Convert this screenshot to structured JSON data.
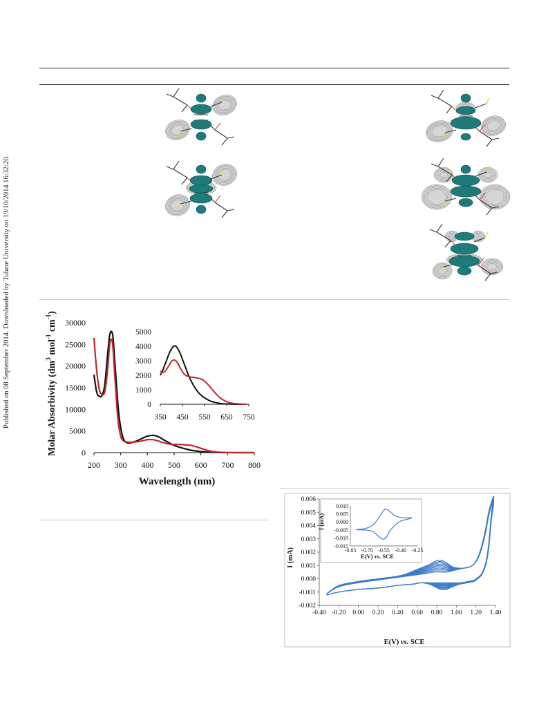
{
  "side_note": "Published on 08 September 2014. Downloaded by Tulane University on 19/10/2014 16:32:20.",
  "mo_panel": {
    "images": [
      {
        "name": "mo-image-left-top"
      },
      {
        "name": "mo-image-left-bottom"
      },
      {
        "name": "mo-image-right-top"
      },
      {
        "name": "mo-image-right-middle"
      },
      {
        "name": "mo-image-right-bottom"
      }
    ]
  },
  "colors": {
    "black_series": "#111111",
    "red_series": "#c0262c",
    "cv_series": "#3d7cc9",
    "lobe": "#1f7a7a",
    "shell": "#d6d6d6"
  },
  "chart_data": [
    {
      "type": "line",
      "id": "uv-vis-main",
      "xlabel": "Wavelength (nm)",
      "ylabel": "Molar Absorbivity (dm3 mol-1 cm-1)",
      "ylabel_parts": {
        "a": "Molar Absorbivity (dm",
        "b": "3",
        "c": " mol",
        "d": "-1",
        "e": " cm",
        "f": "-1",
        "g": ")"
      },
      "xlim": [
        200,
        800
      ],
      "ylim": [
        0,
        30000
      ],
      "x_ticks": [
        "200",
        "300",
        "400",
        "500",
        "600",
        "700",
        "800"
      ],
      "y_ticks": [
        "0",
        "5000",
        "10000",
        "15000",
        "20000",
        "25000",
        "30000"
      ],
      "series": [
        {
          "color": "#111111",
          "x": [
            200,
            210,
            220,
            230,
            240,
            250,
            258,
            264,
            270,
            274,
            278,
            285,
            292,
            300,
            310,
            320,
            330,
            340,
            360,
            380,
            400,
            420,
            440,
            460,
            480,
            500,
            520,
            540,
            560,
            580,
            600,
            620,
            640,
            660,
            680,
            700,
            720,
            760,
            800
          ],
          "y": [
            18000,
            14000,
            13000,
            13200,
            15500,
            22000,
            26800,
            28000,
            27200,
            24500,
            21000,
            15000,
            9500,
            5800,
            3200,
            2400,
            2200,
            2300,
            2700,
            3300,
            3800,
            4000,
            3700,
            3000,
            2300,
            1700,
            1250,
            900,
            600,
            400,
            250,
            150,
            80,
            40,
            20,
            10,
            0,
            0,
            0
          ]
        },
        {
          "color": "#c0262c",
          "x": [
            200,
            210,
            220,
            230,
            240,
            250,
            258,
            264,
            270,
            275,
            282,
            290,
            300,
            310,
            320,
            330,
            340,
            360,
            380,
            400,
            420,
            440,
            460,
            480,
            500,
            520,
            540,
            560,
            580,
            600,
            620,
            640,
            660,
            680,
            700,
            720,
            760,
            800
          ],
          "y": [
            26500,
            19000,
            14500,
            13500,
            14000,
            18500,
            24500,
            26200,
            25000,
            20500,
            14000,
            7500,
            3800,
            2700,
            2500,
            2400,
            2400,
            2500,
            2700,
            3000,
            3000,
            2700,
            2300,
            2000,
            1900,
            1900,
            1800,
            1700,
            1400,
            1000,
            600,
            300,
            150,
            70,
            30,
            10,
            0,
            0
          ]
        }
      ]
    },
    {
      "type": "line",
      "id": "uv-vis-inset",
      "xlim": [
        350,
        750
      ],
      "ylim": [
        0,
        5000
      ],
      "x_ticks": [
        "350",
        "450",
        "550",
        "650",
        "750"
      ],
      "y_ticks": [
        "0",
        "1000",
        "2000",
        "3000",
        "4000",
        "5000"
      ],
      "series": [
        {
          "color": "#111111",
          "x": [
            350,
            360,
            370,
            380,
            390,
            400,
            410,
            420,
            430,
            440,
            450,
            460,
            470,
            480,
            500,
            520,
            540,
            560,
            580,
            600,
            620,
            640,
            660,
            680,
            700,
            720,
            740
          ],
          "y": [
            2000,
            2300,
            2700,
            3100,
            3500,
            3800,
            4000,
            4000,
            3800,
            3500,
            3100,
            2700,
            2300,
            1900,
            1300,
            850,
            550,
            350,
            200,
            120,
            60,
            30,
            15,
            5,
            0,
            0,
            0
          ]
        },
        {
          "color": "#c0262c",
          "x": [
            350,
            360,
            370,
            380,
            390,
            400,
            410,
            420,
            430,
            440,
            450,
            460,
            470,
            480,
            500,
            520,
            540,
            560,
            580,
            600,
            620,
            640,
            660,
            680,
            700,
            720,
            740
          ],
          "y": [
            2300,
            2200,
            2250,
            2450,
            2700,
            2950,
            3050,
            3000,
            2800,
            2500,
            2250,
            2050,
            1950,
            1900,
            1850,
            1800,
            1700,
            1450,
            1100,
            750,
            450,
            250,
            120,
            60,
            30,
            10,
            0
          ]
        }
      ]
    },
    {
      "type": "line",
      "id": "cyclic-voltammogram",
      "xlabel_a": "E(V) ",
      "xlabel_b": "vs.",
      "xlabel_c": " SCE",
      "ylabel": "I (mA)",
      "xlim": [
        -0.4,
        1.4
      ],
      "ylim": [
        -0.002,
        0.006
      ],
      "x_ticks": [
        "-0.40",
        "-0.20",
        "0.00",
        "0.20",
        "0.40",
        "0.60",
        "0.80",
        "1.00",
        "1.20",
        "1.40"
      ],
      "y_ticks": [
        "-0.002",
        "-0.001",
        "0.000",
        "0.001",
        "0.002",
        "0.003",
        "0.004",
        "0.005",
        "0.006"
      ],
      "cycles": 10,
      "anodic_x": [
        -0.32,
        -0.2,
        0,
        0.2,
        0.4,
        0.5,
        0.6,
        0.7,
        0.78,
        0.84,
        0.9,
        0.96,
        1.02,
        1.08,
        1.14,
        1.18,
        1.22,
        1.26,
        1.3,
        1.33,
        1.36,
        1.38
      ],
      "anodic_y_first": [
        -0.0011,
        -0.0006,
        -0.0003,
        -0.0001,
        0.0001,
        0.0002,
        0.0003,
        0.0004,
        0.0005,
        0.0005,
        0.0005,
        0.0006,
        0.0007,
        0.0008,
        0.0009,
        0.0011,
        0.0016,
        0.0025,
        0.0038,
        0.005,
        0.0058,
        0.0062
      ],
      "anodic_y_last": [
        -0.0011,
        -0.0005,
        -0.0002,
        0.0,
        0.0002,
        0.0004,
        0.0007,
        0.001,
        0.0013,
        0.0014,
        0.0012,
        0.0009,
        0.0008,
        0.0008,
        0.0009,
        0.0011,
        0.0015,
        0.0023,
        0.0035,
        0.0047,
        0.0055,
        0.0057
      ],
      "cathodic_x": [
        1.38,
        1.36,
        1.33,
        1.3,
        1.26,
        1.22,
        1.18,
        1.12,
        1.04,
        0.96,
        0.9,
        0.84,
        0.78,
        0.72,
        0.64,
        0.56,
        0.4,
        0.2,
        0,
        -0.2,
        -0.32
      ],
      "cathodic_y_first": [
        0.006,
        0.005,
        0.0026,
        0.0012,
        0.0004,
        0.0001,
        -0.0001,
        -0.0002,
        -0.0003,
        -0.0003,
        -0.0003,
        -0.0003,
        -0.0003,
        -0.0003,
        -0.0003,
        -0.0004,
        -0.0005,
        -0.0007,
        -0.0008,
        -0.001,
        -0.0012
      ],
      "cathodic_y_last": [
        0.0055,
        0.0045,
        0.0022,
        0.001,
        0.0003,
        0.0,
        -0.0002,
        -0.0003,
        -0.0004,
        -0.0006,
        -0.0008,
        -0.0008,
        -0.0006,
        -0.0004,
        -0.0003,
        -0.0004,
        -0.0005,
        -0.0007,
        -0.0008,
        -0.001,
        -0.0012
      ]
    },
    {
      "type": "line",
      "id": "cv-inset",
      "xlabel": "E(V) vs. SCE",
      "ylabel": "I (mA)",
      "xlim": [
        -0.85,
        -0.25
      ],
      "ylim": [
        -0.015,
        0.01
      ],
      "x_ticks": [
        "-0.85",
        "-0.70",
        "-0.55",
        "-0.40",
        "-0.25"
      ],
      "y_ticks": [
        "-0.015",
        "-0.010",
        "-0.005",
        "0.000",
        "0.005",
        "0.010"
      ],
      "loop_x": [
        -0.8,
        -0.75,
        -0.7,
        -0.65,
        -0.6,
        -0.57,
        -0.54,
        -0.51,
        -0.48,
        -0.45,
        -0.4,
        -0.35,
        -0.3,
        -0.35,
        -0.4,
        -0.45,
        -0.5,
        -0.53,
        -0.56,
        -0.59,
        -0.62,
        -0.65,
        -0.7,
        -0.75,
        -0.8
      ],
      "loop_y": [
        -0.0048,
        -0.0045,
        -0.0038,
        -0.002,
        0.002,
        0.0055,
        0.0078,
        0.0072,
        0.0055,
        0.0038,
        0.0028,
        0.0025,
        0.0025,
        0.0015,
        0.0005,
        -0.002,
        -0.006,
        -0.0098,
        -0.0107,
        -0.0095,
        -0.0075,
        -0.006,
        -0.0052,
        -0.005,
        -0.0048
      ]
    }
  ]
}
